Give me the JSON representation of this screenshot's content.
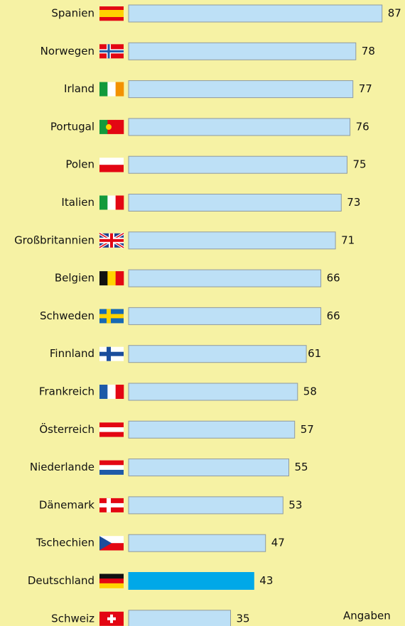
{
  "chart_data": {
    "type": "bar",
    "orientation": "horizontal",
    "categories": [
      "Spanien",
      "Norwegen",
      "Irland",
      "Portugal",
      "Polen",
      "Italien",
      "Großbritannien",
      "Belgien",
      "Schweden",
      "Finnland",
      "Frankreich",
      "Österreich",
      "Niederlande",
      "Dänemark",
      "Tschechien",
      "Deutschland",
      "Schweiz"
    ],
    "values": [
      87,
      78,
      77,
      76,
      75,
      73,
      71,
      66,
      66,
      61,
      58,
      57,
      55,
      53,
      47,
      43,
      35
    ],
    "color": "#bde0f6",
    "highlight_color": "#00a8e8",
    "highlight": "Deutschland",
    "note": "Angaben"
  }
}
